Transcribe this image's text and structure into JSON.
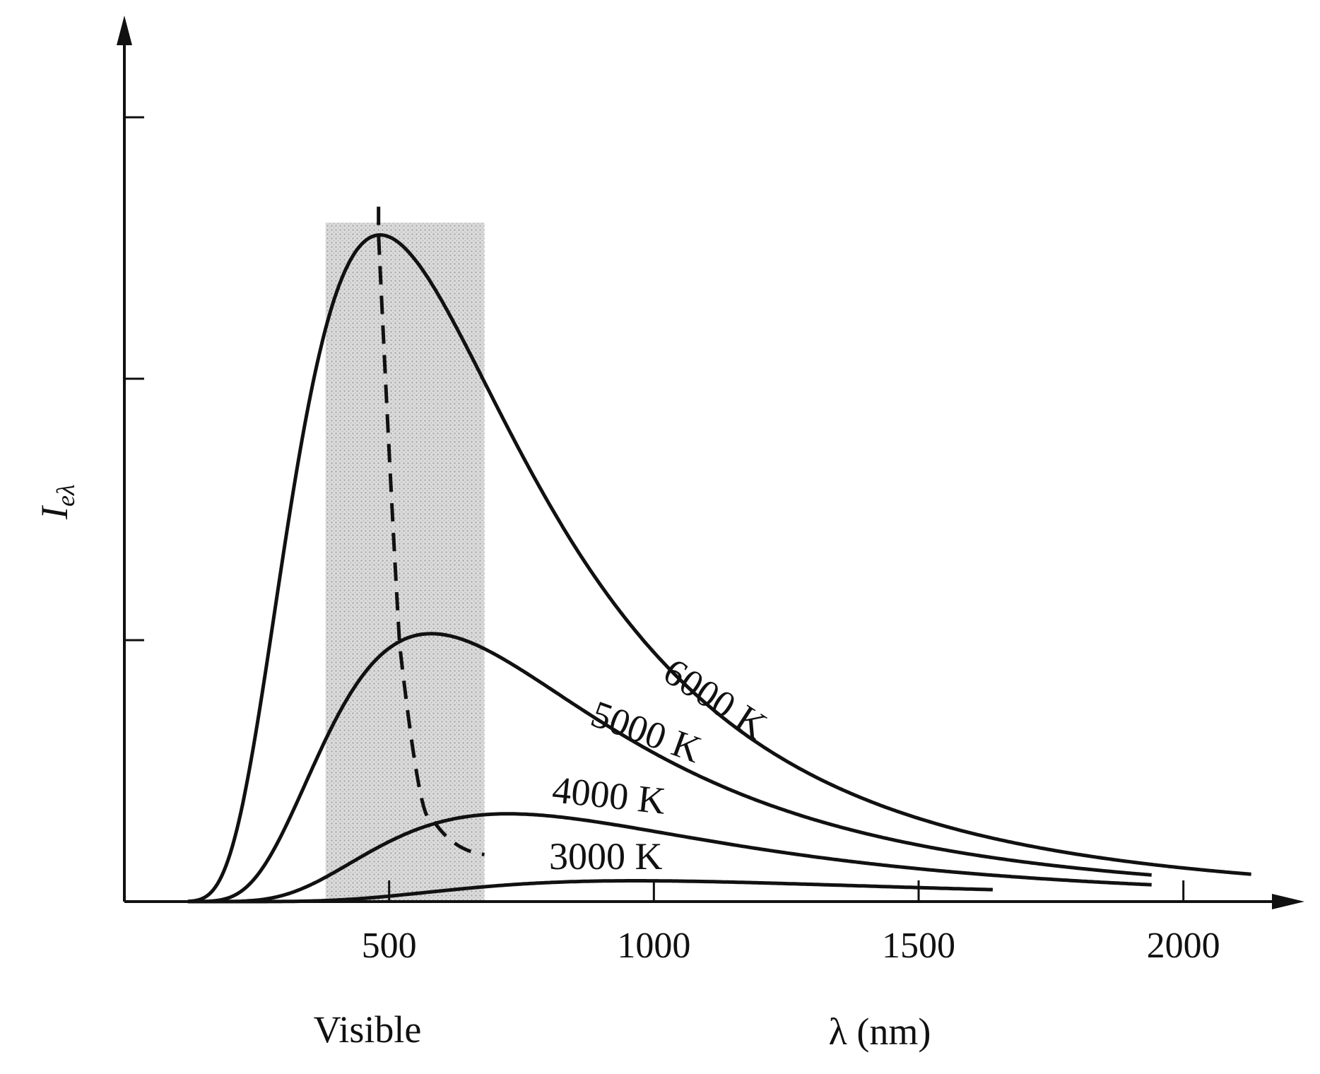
{
  "chart_data": {
    "type": "line",
    "title": "",
    "xlabel": "λ (nm)",
    "ylabel": "I",
    "ylabel_sub": "eλ",
    "xlim": [
      0,
      2300
    ],
    "ylim": [
      0,
      3.1
    ],
    "x_ticks": [
      500,
      1000,
      1500,
      2000
    ],
    "x_tick_labels": [
      "500",
      "1000",
      "1500",
      "2000"
    ],
    "y_ticks": [
      1,
      2,
      3
    ],
    "y_tick_labels": [
      "",
      "",
      ""
    ],
    "grid": false,
    "legend": "none",
    "visible_band": {
      "label": "Visible",
      "x_range": [
        380,
        680
      ]
    },
    "series": [
      {
        "name": "6000 K",
        "temperature": 6000,
        "x_end": 2130,
        "line": "solid"
      },
      {
        "name": "5000 K",
        "temperature": 5000,
        "x_end": 1940,
        "line": "solid"
      },
      {
        "name": "4000 K",
        "temperature": 4000,
        "x_end": 1940,
        "line": "solid"
      },
      {
        "name": "3000 K",
        "temperature": 3000,
        "x_end": 1640,
        "line": "solid"
      }
    ],
    "peak_locus": {
      "line": "dashed",
      "x": [
        480,
        520,
        580,
        680
      ],
      "y": [
        2.55,
        0.98,
        0.32,
        0.18
      ]
    },
    "colors": {
      "line": "#111111",
      "band": "#c8c8c8"
    }
  }
}
